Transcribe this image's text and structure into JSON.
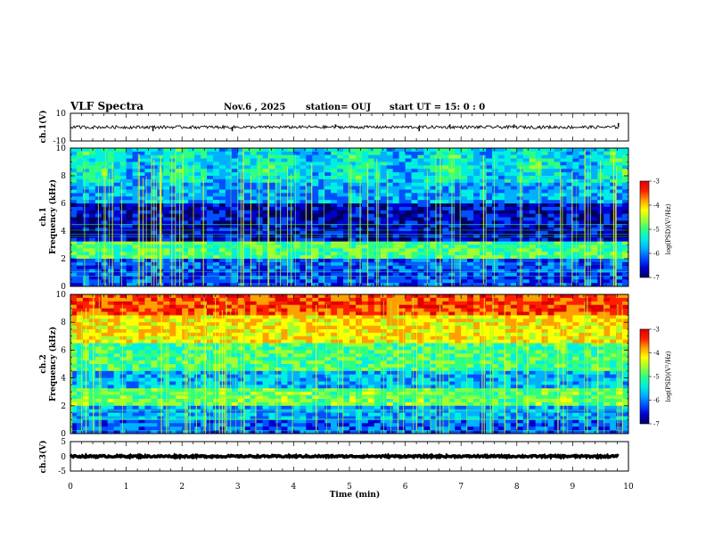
{
  "header": {
    "title": "VLF Spectra",
    "date": "Nov.6  , 2025",
    "station": "station= OUJ",
    "start": "start  UT  =   15: 0  : 0"
  },
  "chart_data": [
    {
      "type": "line",
      "panel": "ch1-waveform",
      "ylabel": "ch.1(V)",
      "ylim": [
        -10,
        10
      ],
      "yticks": [
        "10",
        "-10"
      ],
      "xlim": [
        0,
        10
      ],
      "baseline": 0,
      "spikes": [
        {
          "x": 1.48,
          "y": -3
        },
        {
          "x": 2.9,
          "y": -3
        },
        {
          "x": 4.75,
          "y": 2
        },
        {
          "x": 6.25,
          "y": -3
        },
        {
          "x": 6.8,
          "y": 2
        },
        {
          "x": 7.95,
          "y": 2
        },
        {
          "x": 9.82,
          "y": 3
        }
      ]
    },
    {
      "type": "heatmap",
      "panel": "ch1-spectrogram",
      "ylabel": "ch.1\nFrequency (kHz)",
      "ylim": [
        0,
        10
      ],
      "yticks": [
        "0",
        "2",
        "4",
        "6",
        "8",
        "10"
      ],
      "xlim": [
        0,
        10
      ],
      "colorbar": {
        "label": "log(PSD)(V²/Hz)",
        "ticks": [
          "-3",
          "-4",
          "-5",
          "-6",
          "-7"
        ],
        "range": [
          -7,
          -3
        ]
      }
    },
    {
      "type": "heatmap",
      "panel": "ch2-spectrogram",
      "ylabel": "ch.2\nFrequency (kHz)",
      "ylim": [
        0,
        10
      ],
      "yticks": [
        "0",
        "2",
        "4",
        "6",
        "8",
        "10"
      ],
      "xlim": [
        0,
        10
      ],
      "colorbar": {
        "label": "log(PSD)(V²/Hz)",
        "ticks": [
          "-3",
          "-4",
          "-5",
          "-6",
          "-7"
        ],
        "range": [
          -7,
          -3
        ]
      }
    },
    {
      "type": "line",
      "panel": "ch3-waveform",
      "ylabel": "ch.3(V)",
      "ylim": [
        -5,
        5
      ],
      "yticks": [
        "5",
        "0",
        "-5"
      ],
      "xlim": [
        0,
        10
      ],
      "baseline": 0
    }
  ],
  "xaxis": {
    "label": "Time  (min)",
    "ticks": [
      "0",
      "1",
      "2",
      "3",
      "4",
      "5",
      "6",
      "7",
      "8",
      "9",
      "10"
    ]
  },
  "colors": {
    "colormap": [
      "#000060",
      "#0000d0",
      "#0050ff",
      "#00b0ff",
      "#00f0e0",
      "#30ff80",
      "#a0ff30",
      "#ffff00",
      "#ffa000",
      "#ff2000",
      "#e00000"
    ]
  }
}
